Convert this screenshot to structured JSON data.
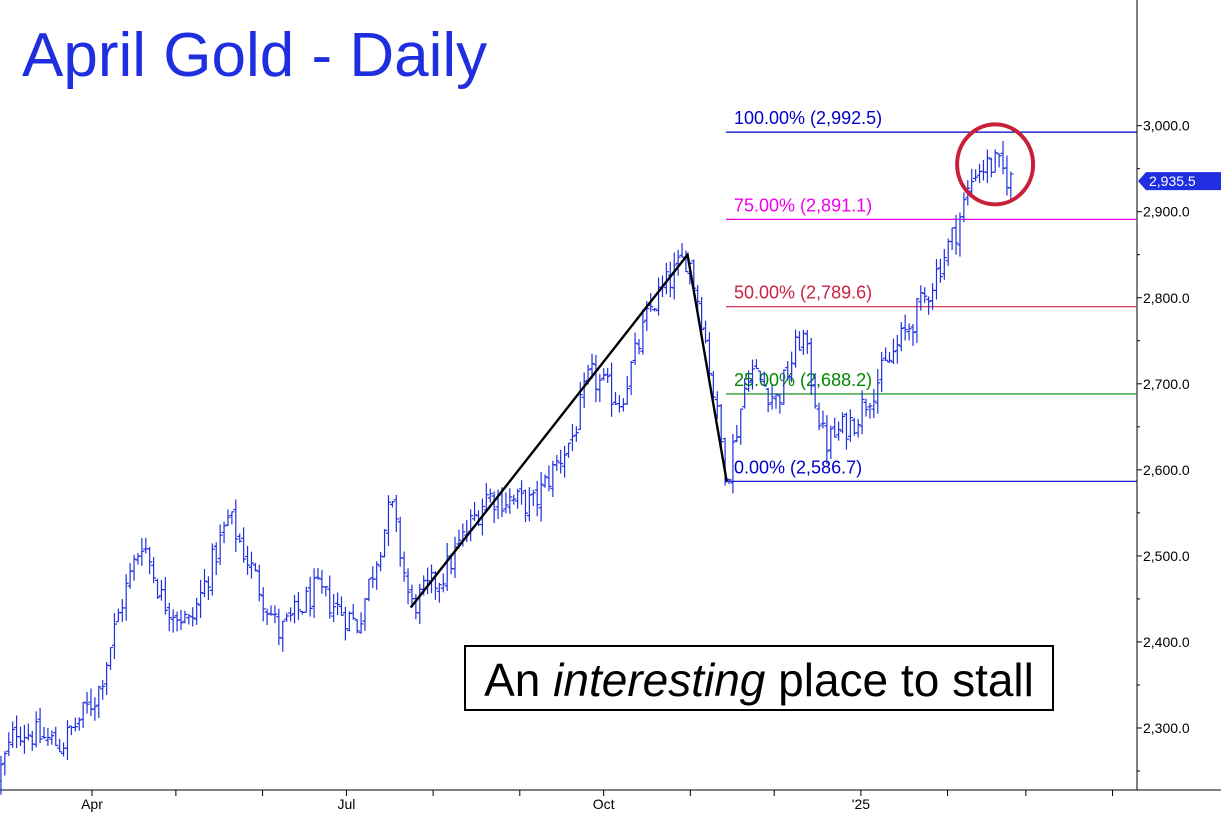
{
  "title": "April Gold - Daily",
  "annotation": {
    "before": "An ",
    "emphasis": "interesting",
    "after": " place to stall"
  },
  "chart_data": {
    "type": "bar",
    "subtype": "ohlc",
    "title": "April Gold - Daily",
    "xlabel": "",
    "ylabel": "",
    "ylim": [
      2220,
      3155
    ],
    "x_ticks": [
      "Apr",
      "Jul",
      "Oct",
      "'25"
    ],
    "y_ticks": [
      2300.0,
      2400.0,
      2500.0,
      2600.0,
      2700.0,
      2800.0,
      2900.0,
      3000.0
    ],
    "y_tick_labels": [
      "2,300.0",
      "2,400.0",
      "2,500.0",
      "2,600.0",
      "2,700.0",
      "2,800.0",
      "2,900.0",
      "3,000.0"
    ],
    "last_price": 2935.5,
    "last_price_label": "2,935.5",
    "grid": false,
    "fib_levels": [
      {
        "label": "100.00% (2,992.5)",
        "value": 2992.5,
        "color": "#0000cc"
      },
      {
        "label": "75.00% (2,891.1)",
        "value": 2891.1,
        "color": "#ee00ee"
      },
      {
        "label": "50.00% (2,789.6)",
        "value": 2789.6,
        "color": "#cc2244"
      },
      {
        "label": "25.00% (2,688.2)",
        "value": 2688.2,
        "color": "#008800"
      },
      {
        "label": "0.00% (2,586.7)",
        "value": 2586.7,
        "color": "#0000cc"
      }
    ],
    "anchor_points": [
      {
        "date": "2024-07-24",
        "price": 2440
      },
      {
        "date": "2024-10-31",
        "price": 2850
      },
      {
        "date": "2024-11-14",
        "price": 2586.7
      }
    ],
    "price_path": [
      {
        "date": "2024-02-27",
        "price": 2240
      },
      {
        "date": "2024-03-05",
        "price": 2300
      },
      {
        "date": "2024-03-21",
        "price": 2280
      },
      {
        "date": "2024-04-03",
        "price": 2340
      },
      {
        "date": "2024-04-12",
        "price": 2450
      },
      {
        "date": "2024-04-19",
        "price": 2520
      },
      {
        "date": "2024-04-26",
        "price": 2450
      },
      {
        "date": "2024-05-06",
        "price": 2420
      },
      {
        "date": "2024-05-20",
        "price": 2545
      },
      {
        "date": "2024-06-07",
        "price": 2410
      },
      {
        "date": "2024-06-20",
        "price": 2460
      },
      {
        "date": "2024-07-05",
        "price": 2420
      },
      {
        "date": "2024-07-17",
        "price": 2560
      },
      {
        "date": "2024-07-24",
        "price": 2440
      },
      {
        "date": "2024-08-05",
        "price": 2480
      },
      {
        "date": "2024-08-20",
        "price": 2570
      },
      {
        "date": "2024-09-06",
        "price": 2560
      },
      {
        "date": "2024-09-20",
        "price": 2640
      },
      {
        "date": "2024-09-26",
        "price": 2710
      },
      {
        "date": "2024-10-07",
        "price": 2680
      },
      {
        "date": "2024-10-18",
        "price": 2790
      },
      {
        "date": "2024-10-31",
        "price": 2850
      },
      {
        "date": "2024-11-05",
        "price": 2780
      },
      {
        "date": "2024-11-14",
        "price": 2590
      },
      {
        "date": "2024-11-22",
        "price": 2720
      },
      {
        "date": "2024-12-02",
        "price": 2680
      },
      {
        "date": "2024-12-11",
        "price": 2760
      },
      {
        "date": "2024-12-19",
        "price": 2630
      },
      {
        "date": "2024-12-30",
        "price": 2660
      },
      {
        "date": "2025-01-10",
        "price": 2720
      },
      {
        "date": "2025-01-24",
        "price": 2800
      },
      {
        "date": "2025-02-04",
        "price": 2880
      },
      {
        "date": "2025-02-11",
        "price": 2950
      },
      {
        "date": "2025-02-18",
        "price": 2955
      },
      {
        "date": "2025-02-24",
        "price": 2935.5
      }
    ]
  }
}
